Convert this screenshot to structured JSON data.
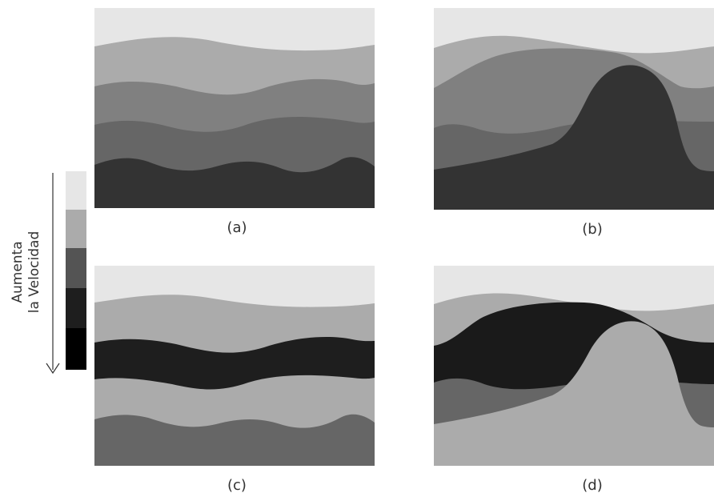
{
  "legend": {
    "label_line1": "Aumenta",
    "label_line2": "la Velocidad",
    "swatches": [
      "#e6e6e6",
      "#ababab",
      "#545454",
      "#1e1e1e",
      "#000000"
    ]
  },
  "panels": [
    {
      "id": "a",
      "label": "(a)"
    },
    {
      "id": "b",
      "label": "(b)"
    },
    {
      "id": "c",
      "label": "(c)"
    },
    {
      "id": "d",
      "label": "(d)"
    }
  ],
  "colors": {
    "lightest": "#e6e6e6",
    "light": "#ababab",
    "mid": "#808080",
    "dark_mid": "#666666",
    "dark": "#333333",
    "darkest": "#1a1a1a",
    "arrow": "#333333"
  }
}
